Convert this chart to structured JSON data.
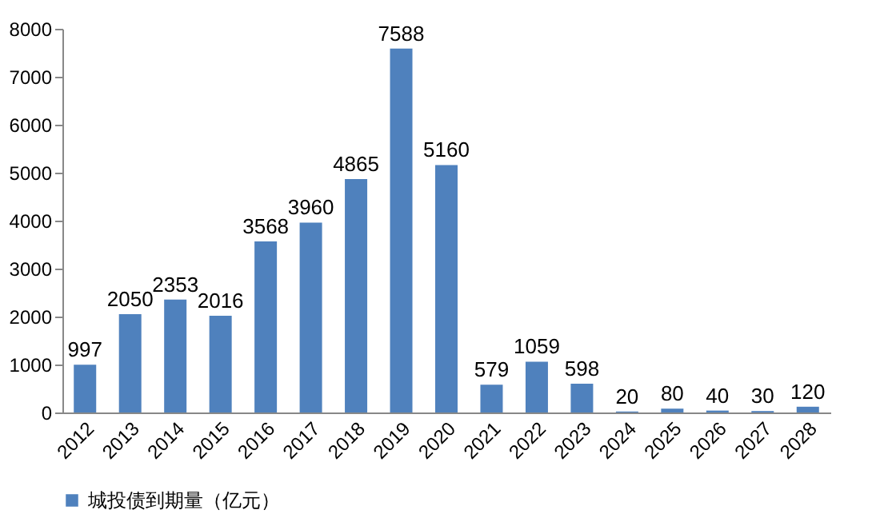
{
  "chart_data": {
    "type": "bar",
    "categories": [
      "2012",
      "2013",
      "2014",
      "2015",
      "2016",
      "2017",
      "2018",
      "2019",
      "2020",
      "2021",
      "2022",
      "2023",
      "2024",
      "2025",
      "2026",
      "2027",
      "2028"
    ],
    "series": [
      {
        "name": "城投债到期量（亿元）",
        "color": "#4f81bd",
        "values": [
          997,
          2050,
          2353,
          2016,
          3568,
          3960,
          4865,
          7588,
          5160,
          579,
          1059,
          598,
          20,
          80,
          40,
          30,
          120
        ]
      }
    ],
    "ylim": [
      0,
      8000
    ],
    "yticks": [
      0,
      1000,
      2000,
      3000,
      4000,
      5000,
      6000,
      7000,
      8000
    ],
    "grid": false,
    "legend": "bottom",
    "data_labels": true
  }
}
